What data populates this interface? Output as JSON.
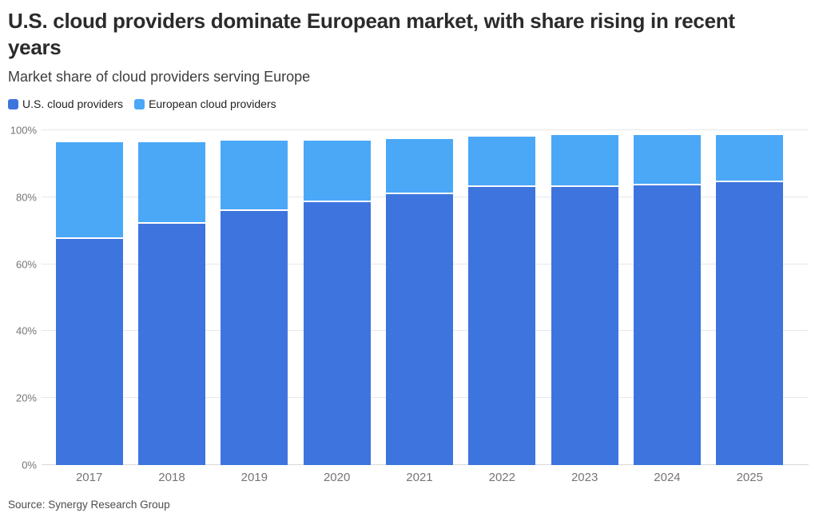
{
  "header": {
    "title": "U.S. cloud providers dominate European market, with share rising in recent years",
    "subtitle": "Market share of cloud providers serving Europe"
  },
  "legend": {
    "items": [
      {
        "label": "U.S. cloud providers",
        "color": "#3E74DE"
      },
      {
        "label": "European cloud providers",
        "color": "#4AA8F7"
      }
    ]
  },
  "chart_data": {
    "type": "bar",
    "stacked": true,
    "title": "U.S. cloud providers dominate European market, with share rising in recent years",
    "subtitle": "Market share of cloud providers serving Europe",
    "categories": [
      "2017",
      "2018",
      "2019",
      "2020",
      "2021",
      "2022",
      "2023",
      "2024",
      "2025"
    ],
    "series": [
      {
        "name": "U.S. cloud providers",
        "color": "#3E74DE",
        "values": [
          67.5,
          72,
          76,
          78.5,
          81,
          83,
          83,
          83.5,
          84.5
        ]
      },
      {
        "name": "European cloud providers",
        "color": "#4AA8F7",
        "values": [
          29,
          24.5,
          21,
          18.5,
          16.5,
          15,
          15.5,
          15,
          14
        ]
      }
    ],
    "xlabel": "",
    "ylabel": "",
    "unit": "%",
    "ylim": [
      0,
      100
    ],
    "yticks": [
      {
        "value": 0,
        "label": "0%"
      },
      {
        "value": 20,
        "label": "20%"
      },
      {
        "value": 40,
        "label": "40%"
      },
      {
        "value": 60,
        "label": "60%"
      },
      {
        "value": 80,
        "label": "80%"
      },
      {
        "value": 100,
        "label": "100%"
      }
    ],
    "grid": "horizontal",
    "legend_position": "top-left",
    "segment_separator_color": "#ffffff"
  },
  "source": {
    "label": "Source: Synergy Research Group"
  }
}
